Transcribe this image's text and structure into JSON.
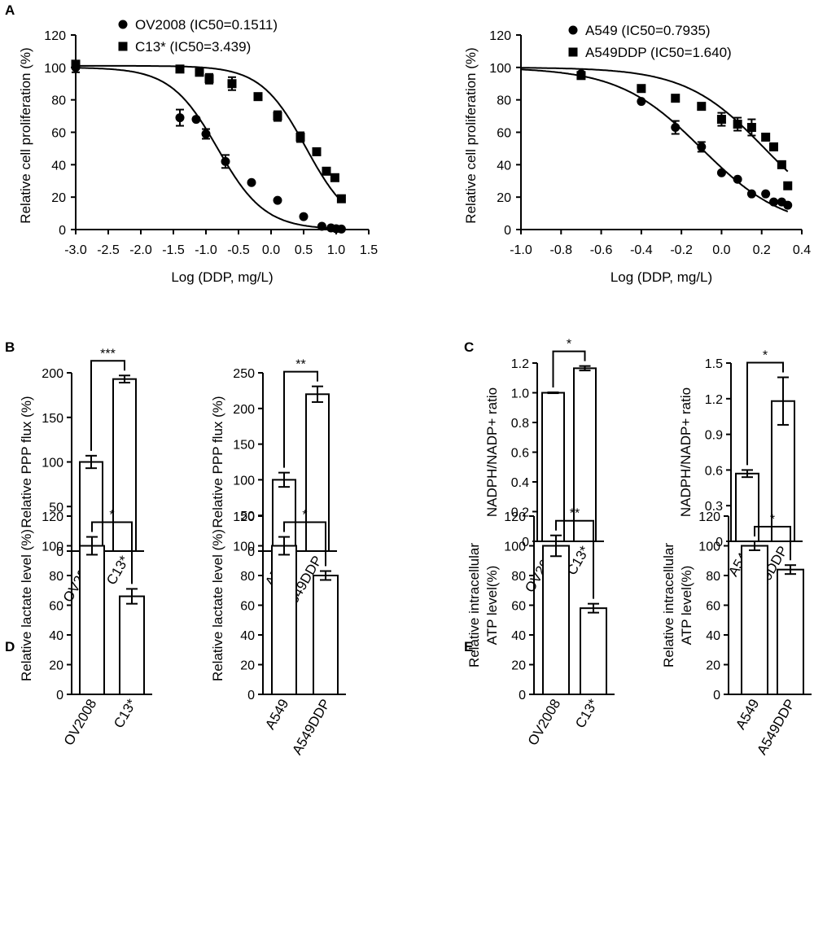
{
  "panel_letters": {
    "a": "A",
    "b": "B",
    "c": "C",
    "d": "D",
    "e": "E"
  },
  "chart_data": [
    {
      "id": "A1",
      "type": "scatter",
      "subtype": "dose-response",
      "xlabel": "Log (DDP, mg/L)",
      "ylabel": "Relative cell proliferation (%)",
      "xlim": [
        -3.0,
        1.5
      ],
      "ylim": [
        0,
        120
      ],
      "xticks": [
        -3.0,
        -2.5,
        -2.0,
        -1.5,
        -1.0,
        -0.5,
        0.0,
        0.5,
        1.0,
        1.5
      ],
      "xtick_labels": [
        "-3.0",
        "-2.5",
        "-2.0",
        "-1.5",
        "-1.0",
        "-0.5",
        "0.0",
        "0.5",
        "1.0",
        "1.5"
      ],
      "yticks": [
        0,
        20,
        40,
        60,
        80,
        100,
        120
      ],
      "ytick_labels": [
        "0",
        "20",
        "40",
        "60",
        "80",
        "100",
        "120"
      ],
      "legend_position": "top-center",
      "series": [
        {
          "name": "OV2008 (IC50=0.1511)",
          "marker": "circle",
          "x": [
            -3.0,
            -1.4,
            -1.15,
            -1.0,
            -0.7,
            -0.3,
            0.1,
            0.5,
            0.78,
            0.92,
            1.0,
            1.08
          ],
          "y": [
            100,
            69,
            68,
            59,
            42,
            29,
            18,
            8,
            2,
            1,
            0.5,
            0.3
          ],
          "err": [
            3,
            5,
            0,
            3,
            4,
            0,
            0,
            0,
            0,
            0,
            0,
            0
          ],
          "curve": {
            "top": 100,
            "bottom": 0,
            "logIC50": -0.82,
            "hill": 1.2
          }
        },
        {
          "name": "C13* (IC50=3.439)",
          "marker": "square",
          "x": [
            -3.0,
            -1.4,
            -1.1,
            -0.95,
            -0.6,
            -0.2,
            0.1,
            0.45,
            0.7,
            0.85,
            0.98,
            1.08
          ],
          "y": [
            102,
            99,
            97,
            93,
            90,
            82,
            70,
            57,
            48,
            36,
            32,
            19
          ],
          "err": [
            0,
            0,
            0,
            3,
            4,
            0,
            3,
            3,
            0,
            0,
            0,
            0
          ],
          "curve": {
            "top": 101,
            "bottom": 0,
            "logIC50": 0.536,
            "hill": 1.25
          }
        }
      ]
    },
    {
      "id": "A2",
      "type": "scatter",
      "subtype": "dose-response",
      "xlabel": "Log (DDP, mg/L)",
      "ylabel": "Relative cell proliferation (%)",
      "xlim": [
        -1.0,
        0.4
      ],
      "ylim": [
        0,
        120
      ],
      "xticks": [
        -1.0,
        -0.8,
        -0.6,
        -0.4,
        -0.2,
        0.0,
        0.2,
        0.4
      ],
      "xtick_labels": [
        "-1.0",
        "-0.8",
        "-0.6",
        "-0.4",
        "-0.2",
        "0.0",
        "0.2",
        "0.4"
      ],
      "yticks": [
        0,
        20,
        40,
        60,
        80,
        100,
        120
      ],
      "ytick_labels": [
        "0",
        "20",
        "40",
        "60",
        "80",
        "100",
        "120"
      ],
      "legend_position": "top-right",
      "series": [
        {
          "name": "A549 (IC50=0.7935)",
          "marker": "circle",
          "x": [
            -0.7,
            -0.4,
            -0.23,
            -0.1,
            0.0,
            0.08,
            0.15,
            0.22,
            0.26,
            0.3,
            0.33
          ],
          "y": [
            96,
            79,
            63,
            51,
            35,
            31,
            22,
            22,
            17,
            17,
            15
          ],
          "err": [
            0,
            0,
            4,
            3,
            0,
            0,
            0,
            0,
            0,
            0,
            0
          ],
          "curve": {
            "top": 100,
            "bottom": 0,
            "logIC50": -0.1,
            "hill": 2.1
          }
        },
        {
          "name": "A549DDP (IC50=1.640)",
          "marker": "square",
          "x": [
            -0.7,
            -0.4,
            -0.23,
            -0.1,
            0.0,
            0.08,
            0.15,
            0.22,
            0.26,
            0.3,
            0.33
          ],
          "y": [
            95,
            87,
            81,
            76,
            68,
            65,
            63,
            57,
            51,
            40,
            27
          ],
          "err": [
            0,
            0,
            0,
            0,
            4,
            4,
            5,
            0,
            0,
            0,
            0
          ],
          "curve": {
            "top": 100,
            "bottom": 0,
            "logIC50": 0.215,
            "hill": 2.2
          }
        }
      ]
    },
    {
      "id": "B1",
      "type": "bar",
      "categories": [
        "OV2008",
        "C13*"
      ],
      "values": [
        100,
        193
      ],
      "errors": [
        7,
        4
      ],
      "ylabel": "Relative PPP flux (%)",
      "ylim": [
        0,
        200
      ],
      "yticks": [
        0,
        50,
        100,
        150,
        200
      ],
      "ytick_labels": [
        "0",
        "50",
        "100",
        "150",
        "200"
      ],
      "significance": "***"
    },
    {
      "id": "B2",
      "type": "bar",
      "categories": [
        "A549",
        "A549DDP"
      ],
      "values": [
        100,
        220
      ],
      "errors": [
        10,
        11
      ],
      "ylabel": "Relative PPP flux (%)",
      "ylim": [
        0,
        250
      ],
      "yticks": [
        0,
        50,
        100,
        150,
        200,
        250
      ],
      "ytick_labels": [
        "0",
        "50",
        "100",
        "150",
        "200",
        "250"
      ],
      "significance": "**"
    },
    {
      "id": "C1",
      "type": "bar",
      "categories": [
        "OV2008",
        "C13*"
      ],
      "values": [
        1.0,
        1.165
      ],
      "errors": [
        0.003,
        0.015
      ],
      "ylabel": "NADPH/NADP+ ratio",
      "ylim": [
        0,
        1.2
      ],
      "yticks": [
        0,
        0.2,
        0.4,
        0.6,
        0.8,
        1.0,
        1.2
      ],
      "ytick_labels": [
        "0",
        "0.2",
        "0.4",
        "0.6",
        "0.8",
        "1.0",
        "1.2"
      ],
      "significance": "*"
    },
    {
      "id": "C2",
      "type": "bar",
      "categories": [
        "A549",
        "A549DDP"
      ],
      "values": [
        0.57,
        1.18
      ],
      "errors": [
        0.03,
        0.2
      ],
      "ylabel": "NADPH/NADP+ ratio",
      "ylim": [
        0,
        1.5
      ],
      "yticks": [
        0,
        0.3,
        0.6,
        0.9,
        1.2,
        1.5
      ],
      "ytick_labels": [
        "0",
        "0.3",
        "0.6",
        "0.9",
        "1.2",
        "1.5"
      ],
      "significance": "*"
    },
    {
      "id": "D1",
      "type": "bar",
      "categories": [
        "OV2008",
        "C13*"
      ],
      "values": [
        100,
        66
      ],
      "errors": [
        6,
        5
      ],
      "ylabel": "Relative lactate level (%)",
      "ylim": [
        0,
        120
      ],
      "yticks": [
        0,
        20,
        40,
        60,
        80,
        100,
        120
      ],
      "ytick_labels": [
        "0",
        "20",
        "40",
        "60",
        "80",
        "100",
        "120"
      ],
      "significance": "*"
    },
    {
      "id": "D2",
      "type": "bar",
      "categories": [
        "A549",
        "A549DDP"
      ],
      "values": [
        100,
        80
      ],
      "errors": [
        6,
        3
      ],
      "ylabel": "Relative lactate level (%)",
      "ylim": [
        0,
        120
      ],
      "yticks": [
        0,
        20,
        40,
        60,
        80,
        100,
        120
      ],
      "ytick_labels": [
        "0",
        "20",
        "40",
        "60",
        "80",
        "100",
        "120"
      ],
      "significance": "*"
    },
    {
      "id": "E1",
      "type": "bar",
      "categories": [
        "OV2008",
        "C13*"
      ],
      "values": [
        100,
        58
      ],
      "errors": [
        7,
        3
      ],
      "ylabel": "Relative intracellular ATP level(%)",
      "ylabel_lines": [
        "Relative intracellular",
        "ATP level(%)"
      ],
      "ylim": [
        0,
        120
      ],
      "yticks": [
        0,
        20,
        40,
        60,
        80,
        100,
        120
      ],
      "ytick_labels": [
        "0",
        "20",
        "40",
        "60",
        "80",
        "100",
        "120"
      ],
      "significance": "**"
    },
    {
      "id": "E2",
      "type": "bar",
      "categories": [
        "A549",
        "A549DDP"
      ],
      "values": [
        100,
        84
      ],
      "errors": [
        3,
        3
      ],
      "ylabel": "Relative intracellular ATP level(%)",
      "ylabel_lines": [
        "Relative intracellular",
        "ATP level(%)"
      ],
      "ylim": [
        0,
        120
      ],
      "yticks": [
        0,
        20,
        40,
        60,
        80,
        100,
        120
      ],
      "ytick_labels": [
        "0",
        "20",
        "40",
        "60",
        "80",
        "100",
        "120"
      ],
      "significance": "*"
    }
  ]
}
